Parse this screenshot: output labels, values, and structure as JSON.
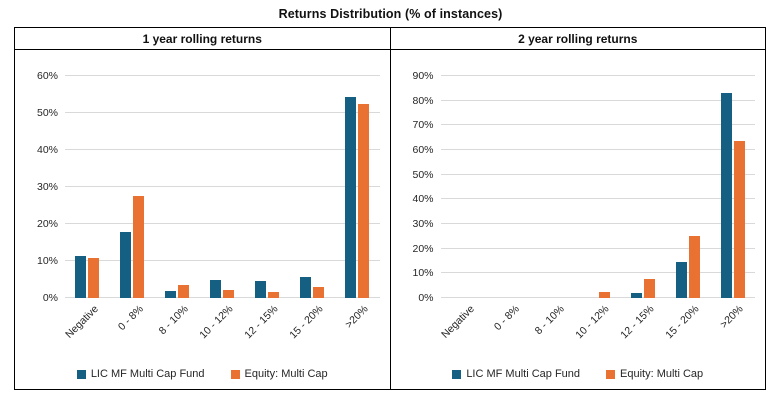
{
  "title": "Returns Distribution (% of instances)",
  "colors": {
    "series1": "#156082",
    "series2": "#E97132",
    "gridline": "#D9D9D9",
    "table_border": "#000000",
    "text": "#262626"
  },
  "legend": [
    {
      "label": "LIC MF Multi Cap Fund",
      "color": "#156082"
    },
    {
      "label": "Equity: Multi Cap",
      "color": "#E97132"
    }
  ],
  "chart_data": [
    {
      "type": "bar",
      "panel_title": "1 year rolling returns",
      "categories": [
        "Negative",
        "0 - 8%",
        "8 - 10%",
        "10 - 12%",
        "12 - 15%",
        "15 - 20%",
        ">20%"
      ],
      "series": [
        {
          "name": "LIC MF Multi Cap Fund",
          "color": "#156082",
          "values": [
            11.3,
            17.8,
            2.0,
            4.9,
            4.5,
            5.8,
            54.3
          ]
        },
        {
          "name": "Equity: Multi Cap",
          "color": "#E97132",
          "values": [
            10.8,
            27.5,
            3.6,
            2.1,
            1.7,
            3.1,
            52.5
          ]
        }
      ],
      "ylim": [
        0,
        60
      ],
      "ytick_step": 10,
      "ytick_labels": [
        "0%",
        "10%",
        "20%",
        "30%",
        "40%",
        "50%",
        "60%"
      ],
      "grid": true,
      "legend_position": "bottom"
    },
    {
      "type": "bar",
      "panel_title": "2 year rolling returns",
      "categories": [
        "Negative",
        "0 - 8%",
        "8 - 10%",
        "10 - 12%",
        "12 - 15%",
        "15 - 20%",
        ">20%"
      ],
      "series": [
        {
          "name": "LIC MF Multi Cap Fund",
          "color": "#156082",
          "values": [
            0,
            0,
            0,
            0,
            2.2,
            14.5,
            83.0
          ]
        },
        {
          "name": "Equity: Multi Cap",
          "color": "#E97132",
          "values": [
            0,
            0,
            0,
            2.5,
            7.6,
            25.2,
            63.5
          ]
        }
      ],
      "ylim": [
        0,
        90
      ],
      "ytick_step": 10,
      "ytick_labels": [
        "0%",
        "10%",
        "20%",
        "30%",
        "40%",
        "50%",
        "60%",
        "70%",
        "80%",
        "90%"
      ],
      "grid": true,
      "legend_position": "bottom"
    }
  ]
}
